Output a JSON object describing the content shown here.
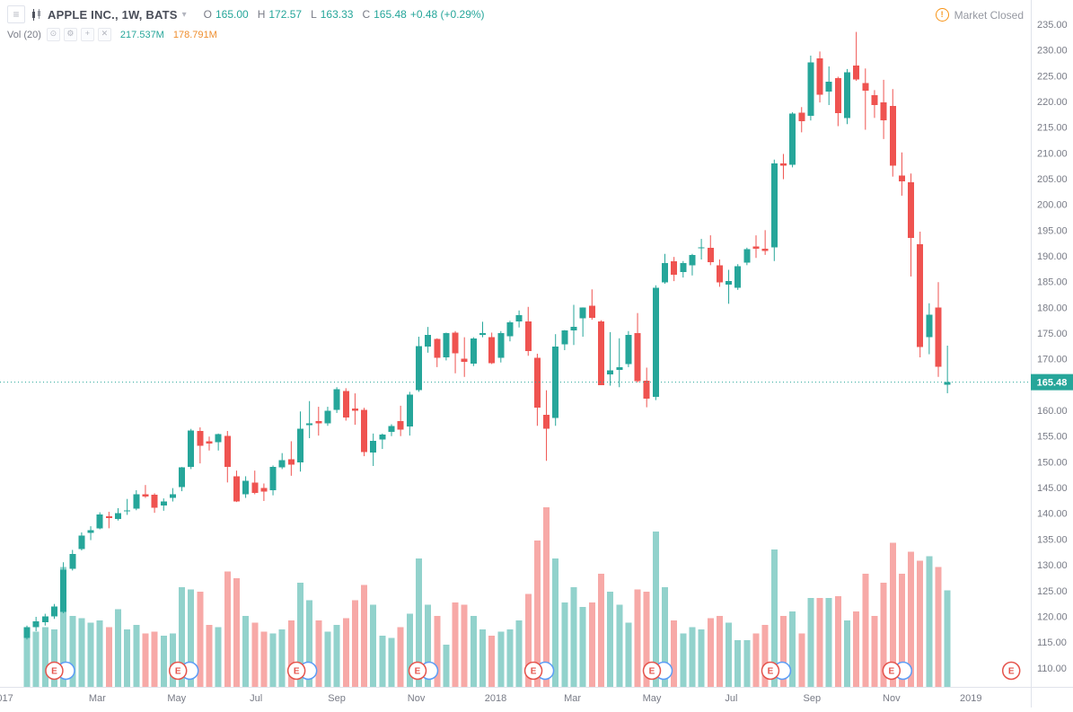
{
  "header": {
    "symbol_title": "APPLE INC., 1W, BATS",
    "ohlc": {
      "o_label": "O",
      "o": "165.00",
      "h_label": "H",
      "h": "172.57",
      "l_label": "L",
      "l": "163.33",
      "c_label": "C",
      "c": "165.48",
      "change": "+0.48 (+0.29%)"
    },
    "volume_indicator": {
      "label": "Vol (20)",
      "value": "217.537M",
      "ma": "178.791M"
    },
    "market_status": "Market Closed"
  },
  "icons": {
    "menu": "≡",
    "caret": "▾",
    "eye": "⊙",
    "gear": "⚙",
    "plus": "+",
    "close": "✕",
    "alert": "!"
  },
  "colors": {
    "up": "#26a69a",
    "down": "#ef5350",
    "vol_up": "rgba(38,166,154,0.5)",
    "vol_down": "rgba(239,83,80,0.5)",
    "axis_border": "#e0e3eb",
    "axis_text": "#787b86",
    "price_label_bg": "#26a69a",
    "marker_red": "#e5534b",
    "marker_alt": "#5b9cf6"
  },
  "chart_data": {
    "type": "candlestick",
    "title": "APPLE INC., 1W, BATS",
    "company": "APPLE INC.",
    "interval": "1W",
    "exchange": "BATS",
    "last_price": 165.48,
    "price_axis": {
      "top_price": 239.7,
      "bottom_price": 106.3,
      "tick_min": 110,
      "tick_max": 235,
      "tick_step": 5
    },
    "volume_axis": {
      "max": 405,
      "max_height": 200
    },
    "time_axis": [
      {
        "label": "2017",
        "date": "2016-12-18"
      },
      {
        "label": "Mar",
        "date": "2017-03-01"
      },
      {
        "label": "May",
        "date": "2017-05-01"
      },
      {
        "label": "Jul",
        "date": "2017-07-01"
      },
      {
        "label": "Sep",
        "date": "2017-09-01"
      },
      {
        "label": "Nov",
        "date": "2017-11-01"
      },
      {
        "label": "2018",
        "date": "2018-01-01"
      },
      {
        "label": "Mar",
        "date": "2018-03-01"
      },
      {
        "label": "May",
        "date": "2018-05-01"
      },
      {
        "label": "Jul",
        "date": "2018-07-01"
      },
      {
        "label": "Sep",
        "date": "2018-09-01"
      },
      {
        "label": "Nov",
        "date": "2018-11-01"
      },
      {
        "label": "2019",
        "date": "2019-01-01"
      }
    ],
    "earnings_letter": "E",
    "earnings_markers": [
      {
        "date": "2017-01-27",
        "type": "pair"
      },
      {
        "date": "2017-05-02",
        "type": "pair"
      },
      {
        "date": "2017-08-01",
        "type": "pair"
      },
      {
        "date": "2017-11-02",
        "type": "pair"
      },
      {
        "date": "2018-01-30",
        "type": "pair"
      },
      {
        "date": "2018-05-01",
        "type": "pair"
      },
      {
        "date": "2018-07-31",
        "type": "pair"
      },
      {
        "date": "2018-11-01",
        "type": "pair"
      },
      {
        "date": "2019-02-01",
        "type": "single"
      }
    ],
    "columns": [
      "week_end_date",
      "open",
      "high",
      "low",
      "close",
      "volume_millions"
    ],
    "candles": [
      [
        "2017-01-06",
        115.8,
        118.2,
        115.5,
        117.9,
        130
      ],
      [
        "2017-01-13",
        117.9,
        119.9,
        117.1,
        119.0,
        125
      ],
      [
        "2017-01-20",
        118.9,
        120.5,
        118.2,
        120.0,
        135
      ],
      [
        "2017-01-27",
        120.0,
        122.4,
        119.5,
        121.9,
        130
      ],
      [
        "2017-02-03",
        120.9,
        130.5,
        120.6,
        129.1,
        270
      ],
      [
        "2017-02-10",
        129.2,
        132.9,
        128.9,
        132.1,
        160
      ],
      [
        "2017-02-17",
        133.1,
        136.3,
        132.8,
        135.7,
        155
      ],
      [
        "2017-02-24",
        136.2,
        137.5,
        134.8,
        136.7,
        145
      ],
      [
        "2017-03-03",
        137.1,
        140.2,
        136.9,
        139.8,
        150
      ],
      [
        "2017-03-10",
        139.4,
        140.3,
        137.1,
        139.1,
        135
      ],
      [
        "2017-03-17",
        138.9,
        141.0,
        138.6,
        140.0,
        175
      ],
      [
        "2017-03-24",
        140.4,
        142.8,
        139.7,
        140.6,
        130
      ],
      [
        "2017-03-31",
        140.9,
        144.5,
        140.6,
        143.7,
        140
      ],
      [
        "2017-04-07",
        143.7,
        145.5,
        143.0,
        143.3,
        120
      ],
      [
        "2017-04-13",
        143.6,
        143.9,
        140.1,
        141.1,
        125
      ],
      [
        "2017-04-21",
        141.5,
        142.9,
        140.5,
        142.3,
        115
      ],
      [
        "2017-04-28",
        143.0,
        144.9,
        142.3,
        143.7,
        120
      ],
      [
        "2017-05-05",
        145.1,
        149.0,
        144.3,
        148.96,
        225
      ],
      [
        "2017-05-12",
        149.0,
        156.4,
        148.6,
        156.1,
        220
      ],
      [
        "2017-05-19",
        156.0,
        156.7,
        149.7,
        153.1,
        215
      ],
      [
        "2017-05-26",
        154.0,
        154.9,
        152.2,
        153.6,
        140
      ],
      [
        "2017-06-02",
        153.8,
        155.5,
        152.2,
        155.4,
        135
      ],
      [
        "2017-06-09",
        155.0,
        156.0,
        146.0,
        149.0,
        260
      ],
      [
        "2017-06-16",
        147.2,
        148.3,
        142.2,
        142.3,
        245
      ],
      [
        "2017-06-23",
        143.7,
        147.2,
        143.0,
        146.3,
        160
      ],
      [
        "2017-06-30",
        146.0,
        148.3,
        143.7,
        144.0,
        145
      ],
      [
        "2017-07-07",
        144.9,
        145.8,
        142.4,
        144.2,
        125
      ],
      [
        "2017-07-14",
        144.5,
        149.3,
        143.5,
        149.0,
        120
      ],
      [
        "2017-07-21",
        148.9,
        151.7,
        148.6,
        150.3,
        130
      ],
      [
        "2017-07-28",
        150.5,
        154.0,
        147.3,
        149.5,
        150
      ],
      [
        "2017-08-04",
        149.9,
        159.8,
        148.1,
        156.4,
        235
      ],
      [
        "2017-08-11",
        157.1,
        161.8,
        154.6,
        157.5,
        195
      ],
      [
        "2017-08-18",
        157.9,
        160.7,
        155.1,
        157.5,
        150
      ],
      [
        "2017-08-25",
        157.5,
        160.7,
        157.0,
        159.9,
        125
      ],
      [
        "2017-09-01",
        160.1,
        164.5,
        159.5,
        164.1,
        140
      ],
      [
        "2017-09-08",
        163.8,
        164.3,
        158.0,
        158.6,
        155
      ],
      [
        "2017-09-15",
        160.4,
        163.3,
        157.2,
        159.9,
        195
      ],
      [
        "2017-09-22",
        160.1,
        160.5,
        151.1,
        151.9,
        230
      ],
      [
        "2017-09-29",
        151.8,
        155.5,
        149.2,
        154.1,
        185
      ],
      [
        "2017-10-06",
        154.3,
        155.5,
        152.5,
        155.3,
        115
      ],
      [
        "2017-10-13",
        155.8,
        157.3,
        155.0,
        157.0,
        110
      ],
      [
        "2017-10-20",
        157.9,
        160.9,
        155.0,
        156.3,
        135
      ],
      [
        "2017-10-27",
        156.9,
        163.6,
        155.1,
        163.1,
        165
      ],
      [
        "2017-11-03",
        163.9,
        174.3,
        163.6,
        172.5,
        290
      ],
      [
        "2017-11-10",
        172.4,
        176.2,
        171.2,
        174.7,
        185
      ],
      [
        "2017-11-17",
        173.9,
        174.0,
        168.4,
        170.2,
        160
      ],
      [
        "2017-11-24",
        170.3,
        175.1,
        169.7,
        175.0,
        95
      ],
      [
        "2017-12-01",
        175.1,
        175.4,
        167.2,
        171.1,
        190
      ],
      [
        "2017-12-08",
        170.0,
        174.2,
        166.5,
        169.4,
        185
      ],
      [
        "2017-12-15",
        169.1,
        174.2,
        168.6,
        174.0,
        160
      ],
      [
        "2017-12-22",
        174.7,
        177.2,
        174.2,
        175.0,
        130
      ],
      [
        "2017-12-29",
        174.2,
        175.1,
        169.0,
        169.2,
        115
      ],
      [
        "2018-01-05",
        170.2,
        175.4,
        169.3,
        175.0,
        125
      ],
      [
        "2018-01-12",
        174.4,
        177.4,
        173.4,
        177.1,
        130
      ],
      [
        "2018-01-19",
        177.3,
        179.4,
        176.1,
        178.5,
        150
      ],
      [
        "2018-01-26",
        177.3,
        180.1,
        170.6,
        171.5,
        210
      ],
      [
        "2018-02-02",
        170.2,
        171.0,
        157.0,
        160.5,
        330
      ],
      [
        "2018-02-09",
        159.1,
        163.9,
        150.2,
        156.4,
        405
      ],
      [
        "2018-02-16",
        158.5,
        174.8,
        157.0,
        172.4,
        290
      ],
      [
        "2018-02-23",
        172.8,
        175.6,
        171.7,
        175.5,
        190
      ],
      [
        "2018-03-02",
        175.5,
        180.5,
        172.7,
        176.2,
        225
      ],
      [
        "2018-03-09",
        177.9,
        180.0,
        174.3,
        180.0,
        180
      ],
      [
        "2018-03-16",
        180.3,
        183.5,
        177.6,
        178.0,
        190
      ],
      [
        "2018-03-23",
        177.3,
        177.5,
        164.9,
        164.9,
        255
      ],
      [
        "2018-03-29",
        167.0,
        175.2,
        164.8,
        167.8,
        215
      ],
      [
        "2018-04-06",
        167.9,
        174.0,
        164.5,
        168.4,
        185
      ],
      [
        "2018-04-13",
        169.0,
        175.4,
        168.4,
        174.7,
        145
      ],
      [
        "2018-04-20",
        175.0,
        178.9,
        165.4,
        165.7,
        220
      ],
      [
        "2018-04-27",
        165.8,
        168.3,
        160.6,
        162.3,
        215
      ],
      [
        "2018-05-04",
        162.6,
        184.3,
        162.0,
        183.8,
        350
      ],
      [
        "2018-05-11",
        184.9,
        190.4,
        184.6,
        188.6,
        225
      ],
      [
        "2018-05-18",
        189.0,
        189.8,
        185.1,
        186.3,
        150
      ],
      [
        "2018-05-25",
        186.9,
        189.0,
        185.8,
        188.6,
        120
      ],
      [
        "2018-06-01",
        188.2,
        190.4,
        186.2,
        190.2,
        135
      ],
      [
        "2018-06-08",
        191.5,
        193.3,
        189.3,
        191.7,
        130
      ],
      [
        "2018-06-15",
        191.6,
        194.0,
        188.2,
        188.8,
        155
      ],
      [
        "2018-06-22",
        188.2,
        189.3,
        184.0,
        184.9,
        160
      ],
      [
        "2018-06-29",
        184.4,
        187.3,
        180.7,
        185.1,
        145
      ],
      [
        "2018-07-06",
        183.8,
        188.4,
        183.4,
        188.0,
        105
      ],
      [
        "2018-07-13",
        188.7,
        191.6,
        188.2,
        191.3,
        105
      ],
      [
        "2018-07-20",
        191.8,
        194.0,
        189.6,
        191.4,
        120
      ],
      [
        "2018-07-27",
        191.4,
        195.0,
        190.2,
        191.0,
        140
      ],
      [
        "2018-08-03",
        191.7,
        208.7,
        189.0,
        208.0,
        310
      ],
      [
        "2018-08-10",
        208.0,
        209.8,
        204.9,
        207.5,
        160
      ],
      [
        "2018-08-17",
        207.7,
        217.9,
        207.2,
        217.6,
        170
      ],
      [
        "2018-08-24",
        217.8,
        218.9,
        214.0,
        216.2,
        120
      ],
      [
        "2018-08-31",
        217.2,
        228.9,
        216.3,
        227.6,
        200
      ],
      [
        "2018-09-07",
        228.4,
        229.7,
        219.8,
        221.3,
        200
      ],
      [
        "2018-09-14",
        221.9,
        226.8,
        219.3,
        223.8,
        200
      ],
      [
        "2018-09-21",
        224.5,
        224.8,
        215.2,
        217.7,
        205
      ],
      [
        "2018-09-28",
        216.8,
        226.3,
        215.6,
        225.7,
        150
      ],
      [
        "2018-10-05",
        227.0,
        233.5,
        224.0,
        224.3,
        170
      ],
      [
        "2018-10-12",
        223.6,
        226.4,
        214.5,
        222.1,
        255
      ],
      [
        "2018-10-19",
        221.2,
        222.2,
        216.8,
        219.3,
        160
      ],
      [
        "2018-10-26",
        219.8,
        224.2,
        212.7,
        216.3,
        235
      ],
      [
        "2018-11-02",
        219.1,
        222.4,
        205.4,
        207.5,
        325
      ],
      [
        "2018-11-09",
        205.6,
        210.1,
        201.7,
        204.5,
        255
      ],
      [
        "2018-11-16",
        204.3,
        206.0,
        186.0,
        193.5,
        305
      ],
      [
        "2018-11-23",
        192.3,
        194.7,
        170.3,
        172.3,
        285
      ],
      [
        "2018-11-30",
        174.2,
        180.8,
        170.9,
        178.6,
        295
      ],
      [
        "2018-12-07",
        180.0,
        184.9,
        166.5,
        168.5,
        270
      ],
      [
        "2018-12-14",
        165.0,
        172.57,
        163.33,
        165.48,
        217.537
      ]
    ]
  }
}
